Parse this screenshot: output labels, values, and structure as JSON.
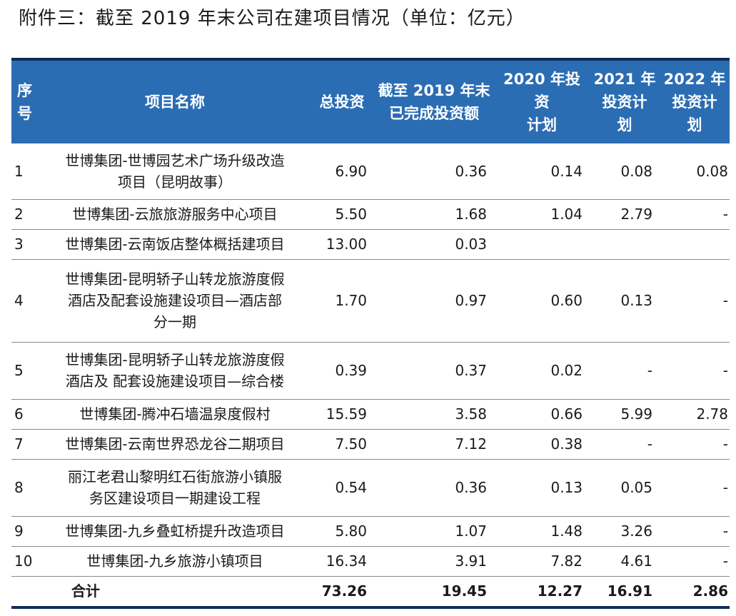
{
  "title": "附件三：截至 2019 年末公司在建项目情况（单位：亿元）",
  "colors": {
    "header_bg": "#2b6db3",
    "rule": "#0f2d57"
  },
  "table": {
    "headers": {
      "idx": [
        "序",
        "号"
      ],
      "name": "项目名称",
      "total": "总投资",
      "done": [
        "截至 2019 年末",
        "已完成投资额"
      ],
      "p2020": [
        "2020 年投资",
        "计划"
      ],
      "p2021": [
        "2021 年",
        "投资计",
        "划"
      ],
      "p2022": [
        "2022 年",
        "投资计",
        "划"
      ]
    },
    "rows": [
      {
        "idx": "1",
        "name": [
          "世博集团-世博园艺术广场升级改造",
          "项目（昆明故事）"
        ],
        "total": "6.90",
        "done": "0.36",
        "p2020": "0.14",
        "p2021": "0.08",
        "p2022": "0.08"
      },
      {
        "idx": "2",
        "name": [
          "世博集团-云旅旅游服务中心项目"
        ],
        "total": "5.50",
        "done": "1.68",
        "p2020": "1.04",
        "p2021": "2.79",
        "p2022": "-"
      },
      {
        "idx": "3",
        "name": [
          "世博集团-云南饭店整体概括建项目"
        ],
        "total": "13.00",
        "done": "0.03",
        "p2020": "",
        "p2021": "",
        "p2022": ""
      },
      {
        "idx": "4",
        "name": [
          "世博集团-昆明轿子山转龙旅游度假",
          "酒店及配套设施建设项目—酒店部",
          "分一期"
        ],
        "total": "1.70",
        "done": "0.97",
        "p2020": "0.60",
        "p2021": "0.13",
        "p2022": "-"
      },
      {
        "idx": "5",
        "name": [
          "世博集团-昆明轿子山转龙旅游度假",
          "酒店及 配套设施建设项目—综合楼"
        ],
        "total": "0.39",
        "done": "0.37",
        "p2020": "0.02",
        "p2021": "-",
        "p2022": "-"
      },
      {
        "idx": "6",
        "name": [
          "世博集团-腾冲石墙温泉度假村"
        ],
        "total": "15.59",
        "done": "3.58",
        "p2020": "0.66",
        "p2021": "5.99",
        "p2022": "2.78"
      },
      {
        "idx": "7",
        "name": [
          "世博集团-云南世界恐龙谷二期项目"
        ],
        "total": "7.50",
        "done": "7.12",
        "p2020": "0.38",
        "p2021": "-",
        "p2022": "-"
      },
      {
        "idx": "8",
        "name": [
          "丽江老君山黎明红石街旅游小镇服",
          "务区建设项目一期建设工程"
        ],
        "total": "0.54",
        "done": "0.36",
        "p2020": "0.13",
        "p2021": "0.05",
        "p2022": "-"
      },
      {
        "idx": "9",
        "name": [
          "世博集团-九乡叠虹桥提升改造项目"
        ],
        "total": "5.80",
        "done": "1.07",
        "p2020": "1.48",
        "p2021": "3.26",
        "p2022": "-"
      },
      {
        "idx": "10",
        "name": [
          "世博集团-九乡旅游小镇项目"
        ],
        "total": "16.34",
        "done": "3.91",
        "p2020": "7.82",
        "p2021": "4.61",
        "p2022": "-"
      }
    ],
    "total_row": {
      "label": "合计",
      "total": "73.26",
      "done": "19.45",
      "p2020": "12.27",
      "p2021": "16.91",
      "p2022": "2.86"
    }
  }
}
